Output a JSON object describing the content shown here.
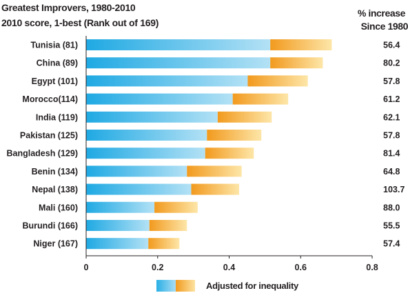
{
  "titles": {
    "line1": "Greatest Improvers, 1980-2010",
    "line2": "2010 score, 1-best (Rank out of 169)",
    "pct_header_1": "% increase",
    "pct_header_2": "Since 1980"
  },
  "legend": {
    "label": "Adjusted for inequality"
  },
  "colors": {
    "blue_dark": "#1fa9e3",
    "blue_light": "#b3e1f5",
    "orange_dark": "#f29a1e",
    "orange_light": "#fde6a8",
    "text": "#231f20"
  },
  "chart_data": {
    "type": "bar",
    "orientation": "horizontal",
    "stacked": true,
    "categories": [
      "Tunisia (81)",
      "China (89)",
      "Egypt (101)",
      "Morocco(114)",
      "India (119)",
      "Pakistan (125)",
      "Bangladesh (129)",
      "Benin (134)",
      "Nepal (138)",
      "Mali (160)",
      "Burundi (166)",
      "Niger (167)"
    ],
    "series": [
      {
        "name": "Adjusted for inequality",
        "values": [
          0.515,
          0.515,
          0.452,
          0.41,
          0.368,
          0.338,
          0.333,
          0.282,
          0.294,
          0.191,
          0.177,
          0.174
        ]
      },
      {
        "values": [
          0.172,
          0.147,
          0.168,
          0.155,
          0.151,
          0.152,
          0.136,
          0.153,
          0.134,
          0.121,
          0.105,
          0.087
        ]
      }
    ],
    "totals": [
      0.687,
      0.662,
      0.62,
      0.565,
      0.519,
      0.49,
      0.469,
      0.435,
      0.428,
      0.312,
      0.282,
      0.261
    ],
    "pct_increase": [
      "56.4",
      "80.2",
      "57.8",
      "61.2",
      "62.1",
      "57.8",
      "81.4",
      "64.8",
      "103.7",
      "88.0",
      "55.5",
      "57.4"
    ],
    "xlim": [
      0,
      0.8
    ],
    "xticks": [
      "0",
      "0.2",
      "0.4",
      "0.6",
      "0.8"
    ],
    "xtick_values": [
      0,
      0.2,
      0.4,
      0.6,
      0.8
    ],
    "grid": false
  }
}
